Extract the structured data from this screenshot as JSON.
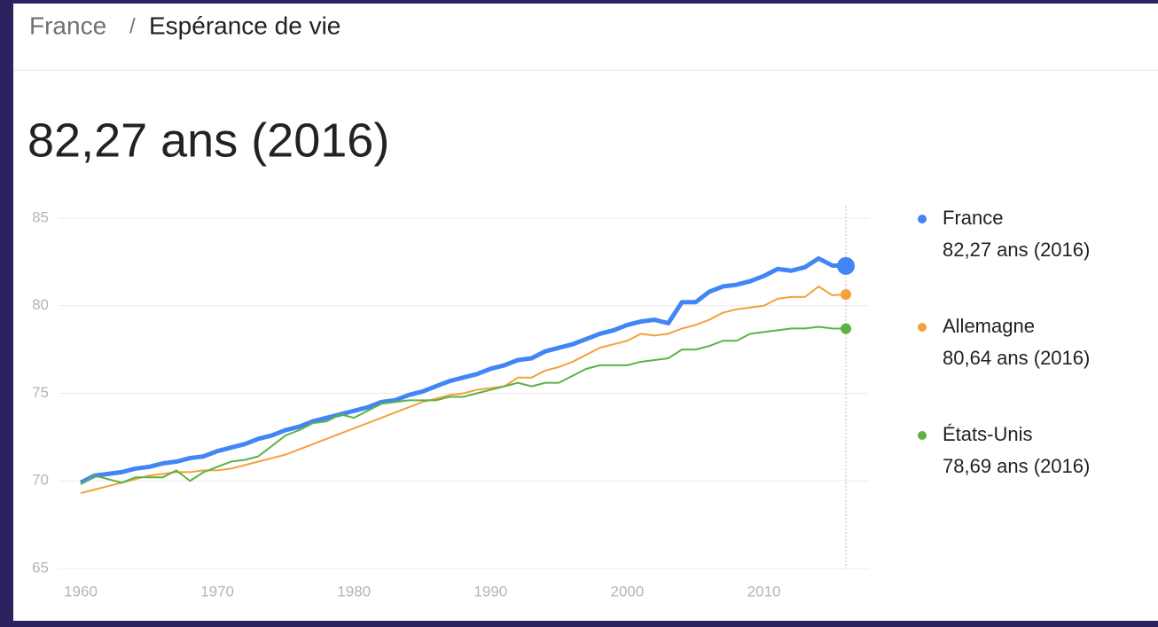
{
  "header": {
    "breadcrumb": [
      "France",
      "Espérance de vie"
    ]
  },
  "chart_data": {
    "type": "line",
    "title": "82,27 ans (2016)",
    "x": [
      1960,
      1961,
      1962,
      1963,
      1964,
      1965,
      1966,
      1967,
      1968,
      1969,
      1970,
      1971,
      1972,
      1973,
      1974,
      1975,
      1976,
      1977,
      1978,
      1979,
      1980,
      1981,
      1982,
      1983,
      1984,
      1985,
      1986,
      1987,
      1988,
      1989,
      1990,
      1991,
      1992,
      1993,
      1994,
      1995,
      1996,
      1997,
      1998,
      1999,
      2000,
      2001,
      2002,
      2003,
      2004,
      2005,
      2006,
      2007,
      2008,
      2009,
      2010,
      2011,
      2012,
      2013,
      2014,
      2015,
      2016
    ],
    "xlim": [
      1960,
      2016
    ],
    "xticks": [
      1960,
      1970,
      1980,
      1990,
      2000,
      2010
    ],
    "ylim": [
      65,
      85
    ],
    "yticks": [
      65,
      70,
      75,
      80,
      85
    ],
    "grid": true,
    "series": [
      {
        "name": "France",
        "color": "#4285f4",
        "legend_label": "82,27 ans (2016)",
        "values": [
          69.9,
          70.3,
          70.4,
          70.5,
          70.7,
          70.8,
          71.0,
          71.1,
          71.3,
          71.4,
          71.7,
          71.9,
          72.1,
          72.4,
          72.6,
          72.9,
          73.1,
          73.4,
          73.6,
          73.8,
          74.0,
          74.2,
          74.5,
          74.6,
          74.9,
          75.1,
          75.4,
          75.7,
          75.9,
          76.1,
          76.4,
          76.6,
          76.9,
          77.0,
          77.4,
          77.6,
          77.8,
          78.1,
          78.4,
          78.6,
          78.9,
          79.1,
          79.2,
          79.0,
          80.2,
          80.2,
          80.8,
          81.1,
          81.2,
          81.4,
          81.7,
          82.1,
          82.0,
          82.2,
          82.7,
          82.3,
          82.27
        ]
      },
      {
        "name": "Allemagne",
        "color": "#f5a03c",
        "legend_label": "80,64 ans (2016)",
        "values": [
          69.3,
          69.5,
          69.7,
          69.9,
          70.1,
          70.3,
          70.4,
          70.5,
          70.5,
          70.6,
          70.6,
          70.7,
          70.9,
          71.1,
          71.3,
          71.5,
          71.8,
          72.1,
          72.4,
          72.7,
          73.0,
          73.3,
          73.6,
          73.9,
          74.2,
          74.5,
          74.7,
          74.9,
          75.0,
          75.2,
          75.3,
          75.4,
          75.9,
          75.9,
          76.3,
          76.5,
          76.8,
          77.2,
          77.6,
          77.8,
          78.0,
          78.4,
          78.3,
          78.4,
          78.7,
          78.9,
          79.2,
          79.6,
          79.8,
          79.9,
          80.0,
          80.4,
          80.5,
          80.5,
          81.1,
          80.6,
          80.64
        ]
      },
      {
        "name": "États-Unis",
        "color": "#5cb246",
        "legend_label": "78,69 ans (2016)",
        "values": [
          69.8,
          70.3,
          70.1,
          69.9,
          70.2,
          70.2,
          70.2,
          70.6,
          70.0,
          70.5,
          70.8,
          71.1,
          71.2,
          71.4,
          72.0,
          72.6,
          72.9,
          73.3,
          73.4,
          73.8,
          73.6,
          74.0,
          74.4,
          74.5,
          74.6,
          74.6,
          74.6,
          74.8,
          74.8,
          75.0,
          75.2,
          75.4,
          75.6,
          75.4,
          75.6,
          75.6,
          76.0,
          76.4,
          76.6,
          76.6,
          76.6,
          76.8,
          76.9,
          77.0,
          77.5,
          77.5,
          77.7,
          78.0,
          78.0,
          78.4,
          78.5,
          78.6,
          78.7,
          78.7,
          78.8,
          78.7,
          78.69
        ]
      }
    ]
  }
}
